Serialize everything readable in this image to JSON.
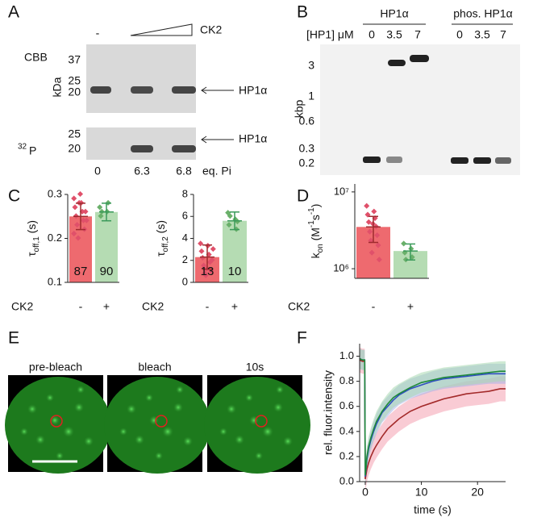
{
  "figure": {
    "panel_labels": [
      "A",
      "B",
      "C",
      "D",
      "E",
      "F"
    ],
    "a": {
      "lane_minus": "-",
      "treatment": "CK2",
      "cbb": "CBB",
      "cbb_ticks": [
        "37",
        "25",
        "20"
      ],
      "mw_unit": "kDa",
      "p32_iso": "32",
      "p32_el": "P",
      "p32_ticks": [
        "25",
        "20"
      ],
      "protein": "HP1α",
      "eq_values": [
        "0",
        "6.3",
        "6.8"
      ],
      "eq_unit": "eq. Pi"
    },
    "b": {
      "group1": "HP1α",
      "group2": "phos. HP1α",
      "conc_label": "[HP1] μM",
      "conc1": [
        "0",
        "3.5",
        "7"
      ],
      "conc2": [
        "0",
        "3.5",
        "7"
      ],
      "axis_label": "kbp",
      "ticks": [
        "3",
        "1",
        "0.6",
        "0.3",
        "0.2"
      ]
    },
    "e": {
      "images": [
        "pre-bleach",
        "bleach",
        "10s"
      ]
    }
  },
  "chart_data": [
    {
      "type": "bar",
      "ylabel_parts": [
        {
          "text": "τ"
        },
        {
          "text": "off,1",
          "pos": "sub"
        },
        {
          "text": " (s)"
        }
      ],
      "xlabel": "CK2",
      "categories": [
        "-",
        "+"
      ],
      "values": [
        0.25,
        0.26
      ],
      "errors": [
        0.03,
        0.02
      ],
      "n": [
        87,
        90
      ],
      "points": [
        [
          0.29,
          0.28,
          0.27,
          0.26,
          0.25,
          0.24,
          0.23,
          0.22,
          0.2,
          0.26,
          0.28,
          0.24,
          0.3,
          0.21
        ],
        [
          0.27,
          0.26,
          0.25,
          0.28,
          0.26
        ]
      ],
      "colors": [
        "#ee6a6f",
        "#b5dcb3"
      ],
      "error_colors": [
        "#9e2a2e",
        "#3a9a5a"
      ],
      "point_colors": [
        "#e0506a",
        "#6ab06a"
      ],
      "ylim": [
        0.1,
        0.3
      ],
      "yticks": [
        0.1,
        0.2,
        0.3
      ]
    },
    {
      "type": "bar",
      "ylabel_parts": [
        {
          "text": "τ"
        },
        {
          "text": "off,2",
          "pos": "sub"
        },
        {
          "text": " (s)"
        }
      ],
      "xlabel": "CK2",
      "categories": [
        "-",
        "+"
      ],
      "values": [
        2.3,
        5.6
      ],
      "errors": [
        1.1,
        0.8
      ],
      "n": [
        13,
        10
      ],
      "points": [
        [
          3.5,
          3.3,
          2.8,
          2.5,
          2.2,
          1.8,
          1.5,
          1,
          0.8,
          2,
          0.6,
          3,
          1.2
        ],
        [
          6.3,
          5.7,
          5.2,
          4.8,
          6,
          5.5
        ]
      ],
      "colors": [
        "#ee6a6f",
        "#b5dcb3"
      ],
      "error_colors": [
        "#9e2a2e",
        "#3a9a5a"
      ],
      "point_colors": [
        "#e0506a",
        "#6ab06a"
      ],
      "ylim": [
        0,
        8
      ],
      "yticks": [
        0,
        2,
        4,
        6,
        8
      ]
    },
    {
      "type": "bar",
      "ylabel_parts": [
        {
          "text": "k"
        },
        {
          "text": "on",
          "pos": "sub"
        },
        {
          "text": " (M"
        },
        {
          "text": "-1",
          "pos": "sup"
        },
        {
          "text": "s"
        },
        {
          "text": "-1",
          "pos": "sup"
        },
        {
          "text": ")"
        }
      ],
      "xlabel": "CK2",
      "categories": [
        "-",
        "+"
      ],
      "values": [
        3500000,
        1700000
      ],
      "errors": [
        1300000,
        400000
      ],
      "points": [
        [
          6500000,
          5500000,
          5000000,
          4500000,
          4000000,
          3500000,
          3000000,
          2700000,
          2300000,
          2000000,
          1600000,
          1300000,
          3800000
        ],
        [
          2100000,
          1800000,
          1600000,
          1400000,
          1300000
        ]
      ],
      "colors": [
        "#ee6a6f",
        "#b5dcb3"
      ],
      "error_colors": [
        "#9e2a2e",
        "#3a9a5a"
      ],
      "point_colors": [
        "#e0506a",
        "#6ab06a"
      ],
      "log_y": true,
      "ylim": [
        750000,
        12700000
      ],
      "yticks": [
        {
          "value": 1000000,
          "label": "10⁶"
        },
        {
          "value": 10000000,
          "label": "10⁷"
        }
      ]
    },
    {
      "type": "line",
      "xlabel": "time (s)",
      "ylabel": "rel. fluor.intensity",
      "x": [
        -1,
        -0.5,
        -0.1,
        0,
        0.3,
        0.6,
        1,
        1.5,
        2,
        3,
        4,
        5,
        6,
        8,
        10,
        12,
        14,
        16,
        18,
        20,
        22,
        24,
        25
      ],
      "series": [
        {
          "color": "#a32a2a",
          "band_color": "#f4a0b0",
          "error": 0.1,
          "values": [
            0.97,
            0.96,
            0.96,
            0.02,
            0.1,
            0.15,
            0.2,
            0.25,
            0.29,
            0.36,
            0.42,
            0.46,
            0.5,
            0.56,
            0.6,
            0.63,
            0.66,
            0.68,
            0.7,
            0.71,
            0.72,
            0.74,
            0.74
          ]
        },
        {
          "color": "#2f4fc0",
          "band_color": "#a8b4e8",
          "error": 0.08,
          "values": [
            0.98,
            0.97,
            0.97,
            0.04,
            0.18,
            0.26,
            0.33,
            0.4,
            0.46,
            0.55,
            0.6,
            0.65,
            0.69,
            0.74,
            0.77,
            0.8,
            0.82,
            0.83,
            0.84,
            0.85,
            0.86,
            0.86,
            0.86
          ]
        },
        {
          "color": "#1f8a3a",
          "band_color": "#a8d8b0",
          "error": 0.08,
          "values": [
            0.98,
            0.97,
            0.97,
            0.05,
            0.2,
            0.28,
            0.35,
            0.42,
            0.48,
            0.56,
            0.62,
            0.67,
            0.7,
            0.75,
            0.79,
            0.81,
            0.83,
            0.84,
            0.85,
            0.86,
            0.87,
            0.88,
            0.88
          ]
        }
      ],
      "xlim": [
        -1,
        25
      ],
      "xticks": [
        0,
        10,
        20
      ],
      "ylim": [
        0,
        1.1
      ],
      "yticks": [
        {
          "value": 0,
          "label": "0.0"
        },
        0.2,
        0.4,
        0.6,
        0.8,
        {
          "value": 1,
          "label": "1.0"
        }
      ]
    }
  ]
}
